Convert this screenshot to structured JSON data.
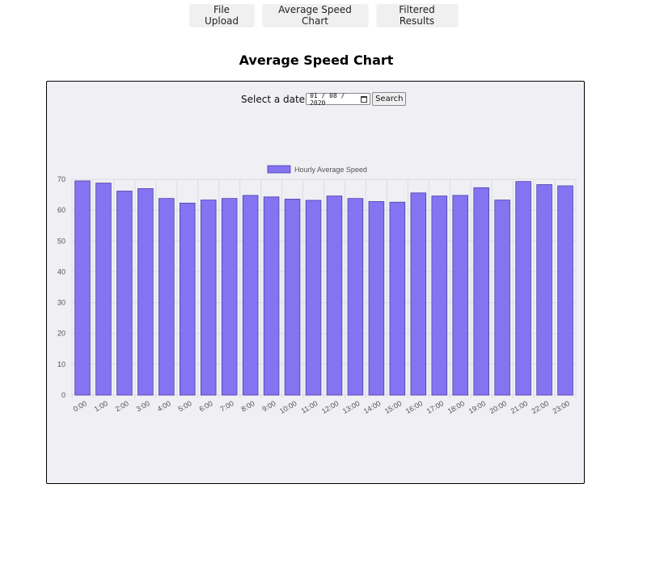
{
  "nav": {
    "tabs": [
      {
        "label": "File Upload"
      },
      {
        "label": "Average Speed Chart"
      },
      {
        "label": "Filtered Results"
      }
    ]
  },
  "page": {
    "title": "Average Speed Chart"
  },
  "filter": {
    "label": "Select a date",
    "date_value": "01 / 08 / 2020",
    "search_label": "Search"
  },
  "colors": {
    "bar_fill": "#8574f1",
    "bar_stroke": "#4b3fa8",
    "grid": "#dcdce4",
    "axis_text": "#555555"
  },
  "chart_data": {
    "type": "bar",
    "categories": [
      "0:00",
      "1:00",
      "2:00",
      "3:00",
      "4:00",
      "5:00",
      "6:00",
      "7:00",
      "8:00",
      "9:00",
      "10:00",
      "11:00",
      "12:00",
      "13:00",
      "14:00",
      "15:00",
      "16:00",
      "17:00",
      "18:00",
      "19:00",
      "20:00",
      "21:00",
      "22:00",
      "23:00"
    ],
    "series": [
      {
        "name": "Hourly Average Speed",
        "values": [
          69.5,
          68.8,
          66.2,
          67.0,
          63.8,
          62.3,
          63.3,
          63.8,
          64.8,
          64.3,
          63.6,
          63.2,
          64.6,
          63.8,
          62.8,
          62.6,
          65.6,
          64.6,
          64.8,
          67.3,
          63.3,
          69.3,
          68.3,
          67.9
        ]
      }
    ],
    "yticks": [
      0,
      10,
      20,
      30,
      40,
      50,
      60,
      70
    ],
    "ylim": [
      0,
      70
    ],
    "legend": "top-center",
    "grid": true
  }
}
